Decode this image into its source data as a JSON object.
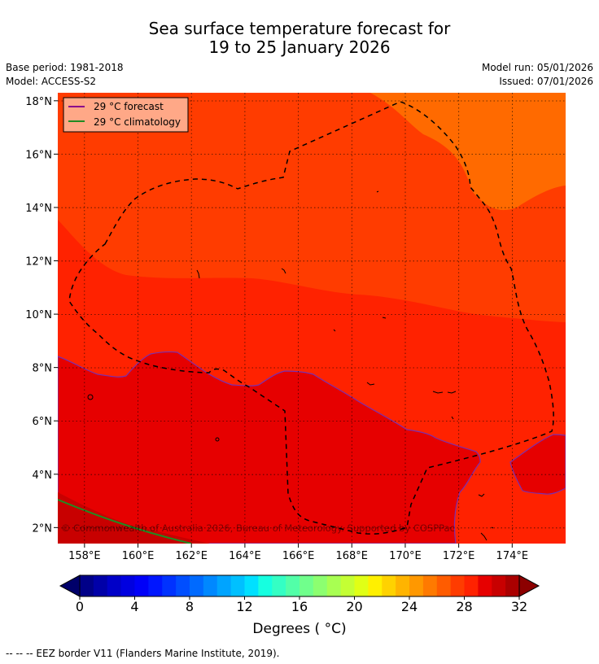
{
  "header": {
    "title_line1": "Sea surface temperature forecast for",
    "title_line2": "19 to 25 January 2026",
    "base_period": "Base period: 1981-2018",
    "model": "Model: ACCESS-S2",
    "model_run": "Model run: 05/01/2026",
    "issued": "Issued: 07/01/2026"
  },
  "map": {
    "lon_range": [
      157,
      176
    ],
    "lat_range": [
      1.4,
      18.3
    ],
    "lon_ticks": [
      {
        "value": 158,
        "label": "158°E"
      },
      {
        "value": 160,
        "label": "160°E"
      },
      {
        "value": 162,
        "label": "162°E"
      },
      {
        "value": 164,
        "label": "164°E"
      },
      {
        "value": 166,
        "label": "166°E"
      },
      {
        "value": 168,
        "label": "168°E"
      },
      {
        "value": 170,
        "label": "170°E"
      },
      {
        "value": 172,
        "label": "172°E"
      },
      {
        "value": 174,
        "label": "174°E"
      }
    ],
    "lat_ticks": [
      {
        "value": 2,
        "label": "2°N"
      },
      {
        "value": 4,
        "label": "4°N"
      },
      {
        "value": 6,
        "label": "6°N"
      },
      {
        "value": 8,
        "label": "8°N"
      },
      {
        "value": 10,
        "label": "10°N"
      },
      {
        "value": 12,
        "label": "12°N"
      },
      {
        "value": 14,
        "label": "14°N"
      },
      {
        "value": 16,
        "label": "16°N"
      },
      {
        "value": 18,
        "label": "18°N"
      }
    ],
    "legend": {
      "forecast_label": "29 °C  forecast",
      "forecast_color": "#8b008b",
      "climatology_label": "29 °C  climatology",
      "climatology_color": "#228b22"
    },
    "copyright": "© Commonwealth of Australia 2026, Bureau of Meteorology. Supported by COSPPac",
    "zones": [
      {
        "temperature_c": 27,
        "color": "#ff6a00"
      },
      {
        "temperature_c": 28,
        "color": "#ff3c00"
      },
      {
        "temperature_c": 29,
        "color": "#ff2200"
      },
      {
        "temperature_c": 30,
        "color": "#e60000"
      },
      {
        "temperature_c": 31,
        "color": "#c80000"
      }
    ]
  },
  "colorbar": {
    "ticks": [
      0,
      4,
      8,
      12,
      16,
      20,
      24,
      28,
      32
    ],
    "min": 0,
    "max": 32,
    "step": 1,
    "label": "Degrees ( °C)",
    "colors": [
      "#000088",
      "#0000a8",
      "#0000c8",
      "#0000e0",
      "#0000f8",
      "#0016ff",
      "#0032ff",
      "#004eff",
      "#006aff",
      "#0088ff",
      "#00a4ff",
      "#00c0ff",
      "#00e0ff",
      "#16ffe0",
      "#34ffc4",
      "#52ffa8",
      "#70ff8c",
      "#8cff70",
      "#a8ff52",
      "#c4ff34",
      "#e0ff16",
      "#fff000",
      "#ffd200",
      "#ffb400",
      "#ff9800",
      "#ff7a00",
      "#ff5c00",
      "#ff3c00",
      "#ff2200",
      "#e60000",
      "#c80000",
      "#aa0000"
    ],
    "under_color": "#00006a",
    "over_color": "#8c0000"
  },
  "footer": {
    "eez_note": "--  --  -- EEZ border V11 (Flanders Marine Institute, 2019)."
  }
}
